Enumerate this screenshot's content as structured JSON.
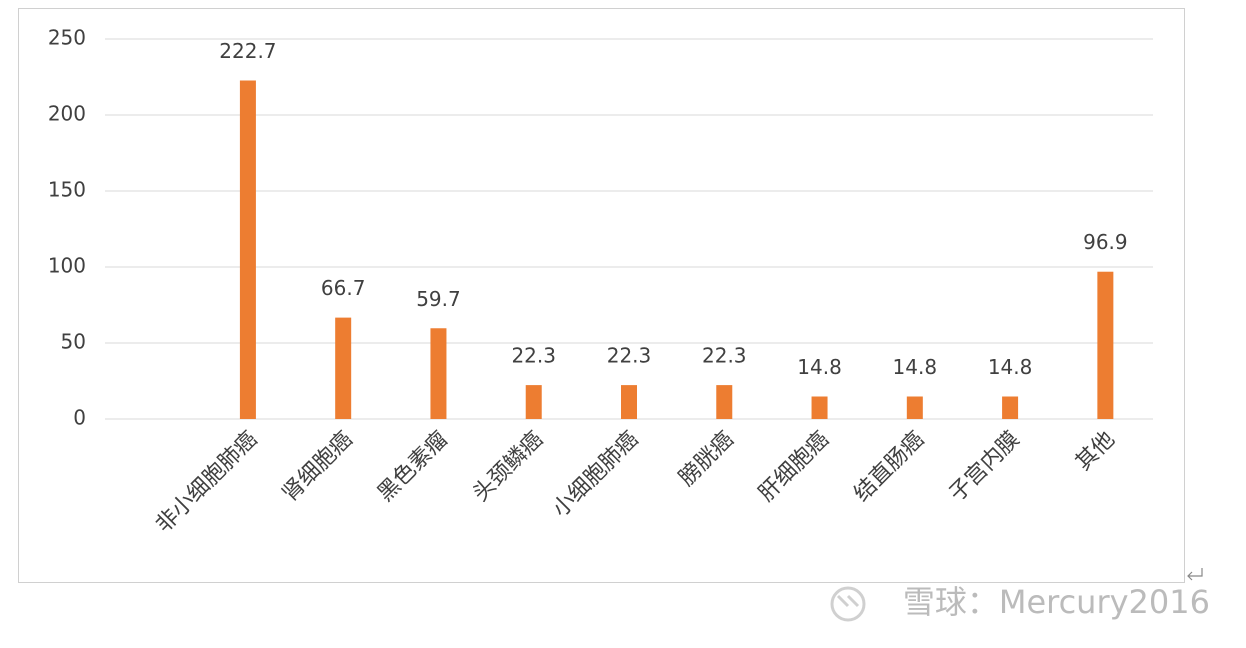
{
  "chart_data": {
    "type": "bar",
    "categories": [
      null,
      "非小细胞肺癌",
      "肾细胞癌",
      "黑色素瘤",
      "头颈鳞癌",
      "小细胞肺癌",
      "膀胱癌",
      "肝细胞癌",
      "结直肠癌",
      "子宫内膜",
      "其他"
    ],
    "values": [
      null,
      222.7,
      66.7,
      59.7,
      22.3,
      22.3,
      22.3,
      14.8,
      14.8,
      14.8,
      96.9
    ],
    "color": "#ed7d31",
    "ylim": [
      0,
      250
    ],
    "yticks": [
      0,
      50,
      100,
      150,
      200,
      250
    ],
    "grid": true,
    "watermark": "雪球：Mercury2016"
  }
}
